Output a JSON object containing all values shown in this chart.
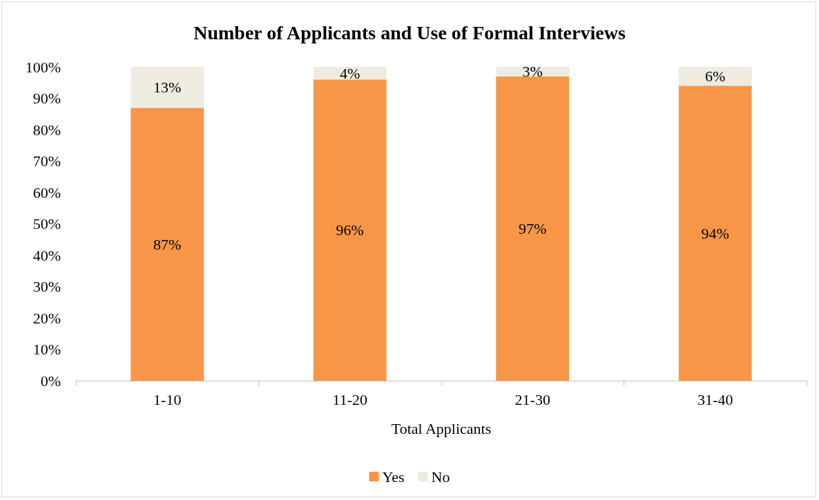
{
  "chart_data": {
    "type": "bar",
    "title": "Number of Applicants and Use of Formal Interviews",
    "xlabel": "Total Applicants",
    "categories": [
      "1-10",
      "11-20",
      "21-30",
      "31-40"
    ],
    "stacked": true,
    "series": [
      {
        "name": "Yes",
        "color": "#f79646",
        "values": [
          87,
          96,
          97,
          94
        ],
        "value_labels": [
          "87%",
          "96%",
          "97%",
          "94%"
        ]
      },
      {
        "name": "No",
        "color": "#eeece1",
        "values": [
          13,
          4,
          3,
          6
        ],
        "value_labels": [
          "13%",
          "4%",
          "3%",
          "6%"
        ]
      }
    ],
    "ylim": [
      0,
      100
    ],
    "yticks": [
      {
        "value": 0,
        "label": "0%"
      },
      {
        "value": 10,
        "label": "10%"
      },
      {
        "value": 20,
        "label": "20%"
      },
      {
        "value": 30,
        "label": "30%"
      },
      {
        "value": 40,
        "label": "40%"
      },
      {
        "value": 50,
        "label": "50%"
      },
      {
        "value": 60,
        "label": "60%"
      },
      {
        "value": 70,
        "label": "70%"
      },
      {
        "value": 80,
        "label": "80%"
      },
      {
        "value": 90,
        "label": "90%"
      },
      {
        "value": 100,
        "label": "100%"
      }
    ],
    "grid": false,
    "legend": "bottom"
  }
}
